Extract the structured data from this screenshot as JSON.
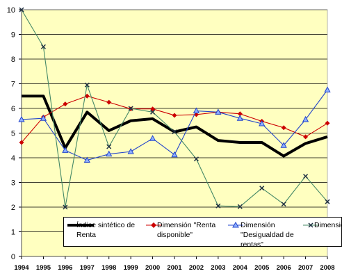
{
  "chart_data": {
    "type": "line",
    "title": "",
    "xlabel": "",
    "ylabel": "",
    "x": [
      "1994",
      "1995",
      "1996",
      "1997",
      "1998",
      "1999",
      "2000",
      "2001",
      "2002",
      "2003",
      "2004",
      "2005",
      "2006",
      "2007",
      "2008"
    ],
    "ylim": [
      0,
      10
    ],
    "yticks": [
      0,
      1,
      2,
      3,
      4,
      5,
      6,
      7,
      8,
      9,
      10
    ],
    "grid": true,
    "legend_position": "bottom-right",
    "plot_background": "#ffffc0",
    "series": [
      {
        "name": "Índice sintético de Renta",
        "color": "#000000",
        "marker": "none",
        "values": [
          6.5,
          6.5,
          4.4,
          5.85,
          5.1,
          5.5,
          5.58,
          5.05,
          5.25,
          4.7,
          4.62,
          4.62,
          4.07,
          4.58,
          4.85
        ]
      },
      {
        "name": "Dimensión \"Renta disponible\"",
        "color": "#cc0000",
        "marker": "diamond",
        "values": [
          4.62,
          5.65,
          6.18,
          6.5,
          6.25,
          5.98,
          5.98,
          5.72,
          5.75,
          5.85,
          5.78,
          5.48,
          5.22,
          4.85,
          5.4
        ]
      },
      {
        "name": "Dimensión \"Desigualdad de rentas\"",
        "color": "#2244cc",
        "marker": "triangle",
        "values": [
          5.55,
          5.6,
          4.3,
          3.9,
          4.15,
          4.25,
          4.78,
          4.12,
          5.9,
          5.85,
          5.6,
          5.38,
          4.5,
          5.55,
          6.75
        ]
      },
      {
        "name": "Dimensión \"Pobreza\"",
        "color": "#448866",
        "marker": "x",
        "values": [
          10.0,
          8.5,
          2.0,
          6.95,
          4.45,
          6.0,
          5.85,
          5.05,
          3.95,
          2.05,
          2.02,
          2.77,
          2.12,
          3.25,
          2.22
        ]
      }
    ]
  },
  "legend": {
    "items": [
      {
        "text": "Índice sintético de Renta"
      },
      {
        "text": "Dimensión \"Renta disponible\""
      },
      {
        "text": "Dimensión \"Desigualdad de rentas\""
      },
      {
        "text": "Dimensión \"Pobreza\""
      }
    ]
  }
}
